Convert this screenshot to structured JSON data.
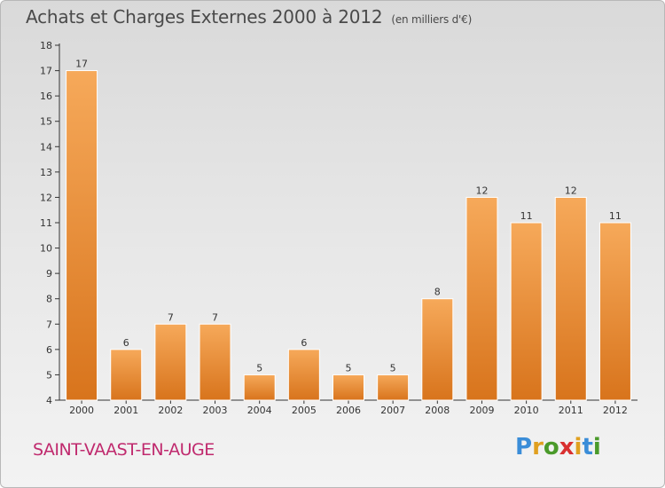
{
  "header": {
    "title": "Achats et Charges Externes 2000 à 2012",
    "subtitle": "(en milliers d'€)"
  },
  "footer": {
    "commune": "SAINT-VAAST-EN-AUGE",
    "logo": [
      "P",
      "r",
      "o",
      "x",
      "i",
      "t",
      "i"
    ],
    "logo_colors": [
      "#3a8dd8",
      "#e0a020",
      "#4a9a2a",
      "#d93030",
      "#e0a020",
      "#3a8dd8",
      "#4a9a2a"
    ]
  },
  "colors": {
    "bar_top": "#f6a95a",
    "bar_bottom": "#d8741c",
    "axis": "#333333",
    "commune_text": "#c02a6e"
  },
  "chart_data": {
    "type": "bar",
    "categories": [
      "2000",
      "2001",
      "2002",
      "2003",
      "2004",
      "2005",
      "2006",
      "2007",
      "2008",
      "2009",
      "2010",
      "2011",
      "2012"
    ],
    "values": [
      17,
      6,
      7,
      7,
      5,
      6,
      5,
      5,
      8,
      12,
      11,
      12,
      11
    ],
    "ylim": [
      4,
      18
    ],
    "yticks": [
      4,
      5,
      6,
      7,
      8,
      9,
      10,
      11,
      12,
      13,
      14,
      15,
      16,
      17,
      18
    ],
    "grid": false,
    "legend": "none"
  }
}
